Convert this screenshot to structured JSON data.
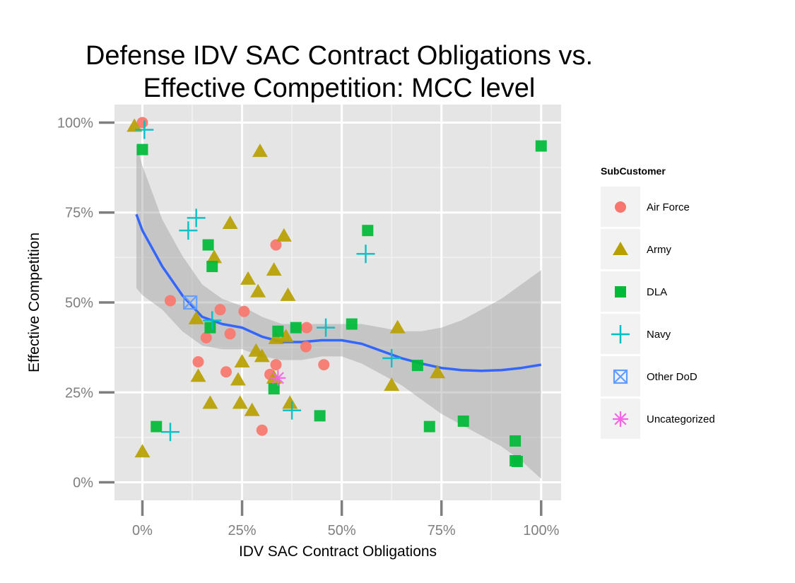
{
  "chart_data": {
    "type": "scatter",
    "title": [
      "Defense IDV SAC Contract Obligations vs.",
      "Effective Competition: MCC level"
    ],
    "xlabel": "IDV SAC Contract Obligations",
    "ylabel": "Effective Competition",
    "xlim": [
      -0.07,
      1.05
    ],
    "ylim": [
      -0.05,
      1.05
    ],
    "x_ticks": [
      0,
      0.25,
      0.5,
      0.75,
      1.0
    ],
    "x_tick_labels": [
      "0%",
      "25%",
      "50%",
      "75%",
      "100%"
    ],
    "y_ticks": [
      0,
      0.25,
      0.5,
      0.75,
      1.0
    ],
    "y_tick_labels": [
      "0%",
      "25%",
      "50%",
      "75%",
      "100%"
    ],
    "grid": true,
    "legend_position": "right",
    "legend": {
      "title": "SubCustomer",
      "entries": [
        {
          "name": "Air Force",
          "shape": "circle",
          "color": "#F8766D"
        },
        {
          "name": "Army",
          "shape": "triangle",
          "color": "#B79F00"
        },
        {
          "name": "DLA",
          "shape": "square",
          "color": "#00BA38"
        },
        {
          "name": "Navy",
          "shape": "plus",
          "color": "#00BFC4"
        },
        {
          "name": "Other DoD",
          "shape": "boxx",
          "color": "#619CFF"
        },
        {
          "name": "Uncategorized",
          "shape": "asterisk",
          "color": "#F564E3"
        }
      ]
    },
    "series": [
      {
        "name": "Air Force",
        "points": [
          [
            0.0,
            1.0
          ],
          [
            0.07,
            0.505
          ],
          [
            0.14,
            0.335
          ],
          [
            0.16,
            0.402
          ],
          [
            0.195,
            0.48
          ],
          [
            0.21,
            0.307
          ],
          [
            0.22,
            0.413
          ],
          [
            0.255,
            0.475
          ],
          [
            0.3,
            0.145
          ],
          [
            0.32,
            0.3
          ],
          [
            0.335,
            0.327
          ],
          [
            0.335,
            0.66
          ],
          [
            0.41,
            0.377
          ],
          [
            0.412,
            0.43
          ],
          [
            0.455,
            0.327
          ]
        ]
      },
      {
        "name": "Army",
        "points": [
          [
            -0.02,
            0.99
          ],
          [
            0.0,
            0.085
          ],
          [
            0.135,
            0.455
          ],
          [
            0.14,
            0.295
          ],
          [
            0.17,
            0.22
          ],
          [
            0.18,
            0.625
          ],
          [
            0.22,
            0.72
          ],
          [
            0.24,
            0.285
          ],
          [
            0.245,
            0.22
          ],
          [
            0.25,
            0.335
          ],
          [
            0.265,
            0.565
          ],
          [
            0.275,
            0.2
          ],
          [
            0.285,
            0.365
          ],
          [
            0.29,
            0.53
          ],
          [
            0.295,
            0.92
          ],
          [
            0.3,
            0.35
          ],
          [
            0.33,
            0.29
          ],
          [
            0.33,
            0.59
          ],
          [
            0.335,
            0.4
          ],
          [
            0.355,
            0.685
          ],
          [
            0.36,
            0.405
          ],
          [
            0.365,
            0.52
          ],
          [
            0.37,
            0.22
          ],
          [
            0.625,
            0.27
          ],
          [
            0.64,
            0.43
          ],
          [
            0.74,
            0.305
          ]
        ]
      },
      {
        "name": "DLA",
        "points": [
          [
            0.0,
            0.925
          ],
          [
            0.035,
            0.155
          ],
          [
            0.165,
            0.66
          ],
          [
            0.17,
            0.43
          ],
          [
            0.175,
            0.6
          ],
          [
            0.33,
            0.26
          ],
          [
            0.34,
            0.42
          ],
          [
            0.385,
            0.43
          ],
          [
            0.445,
            0.185
          ],
          [
            0.525,
            0.44
          ],
          [
            0.565,
            0.7
          ],
          [
            0.69,
            0.325
          ],
          [
            0.72,
            0.155
          ],
          [
            0.805,
            0.17
          ],
          [
            0.935,
            0.115
          ],
          [
            0.935,
            0.06
          ],
          [
            0.94,
            0.058
          ],
          [
            1.0,
            0.935
          ]
        ]
      },
      {
        "name": "Navy",
        "points": [
          [
            0.005,
            0.98
          ],
          [
            0.07,
            0.14
          ],
          [
            0.115,
            0.7
          ],
          [
            0.135,
            0.735
          ],
          [
            0.175,
            0.45
          ],
          [
            0.375,
            0.2
          ],
          [
            0.46,
            0.43
          ],
          [
            0.56,
            0.635
          ],
          [
            0.625,
            0.345
          ]
        ]
      },
      {
        "name": "Other DoD",
        "points": [
          [
            0.12,
            0.5
          ]
        ]
      },
      {
        "name": "Uncategorized",
        "points": [
          [
            0.34,
            0.29
          ]
        ]
      }
    ],
    "smooth": {
      "x": [
        -0.015,
        0.0,
        0.05,
        0.1,
        0.15,
        0.2,
        0.25,
        0.3,
        0.35,
        0.4,
        0.45,
        0.5,
        0.55,
        0.6,
        0.65,
        0.7,
        0.75,
        0.8,
        0.85,
        0.9,
        0.95,
        1.0
      ],
      "y": [
        0.745,
        0.7,
        0.6,
        0.52,
        0.46,
        0.44,
        0.43,
        0.405,
        0.39,
        0.39,
        0.395,
        0.395,
        0.385,
        0.365,
        0.345,
        0.33,
        0.318,
        0.312,
        0.31,
        0.312,
        0.318,
        0.327
      ],
      "lower": [
        0.54,
        0.52,
        0.48,
        0.42,
        0.38,
        0.37,
        0.37,
        0.35,
        0.34,
        0.34,
        0.35,
        0.35,
        0.33,
        0.3,
        0.27,
        0.23,
        0.19,
        0.16,
        0.13,
        0.1,
        0.06,
        0.01
      ],
      "upper": [
        0.94,
        0.88,
        0.73,
        0.63,
        0.55,
        0.51,
        0.49,
        0.46,
        0.44,
        0.44,
        0.44,
        0.44,
        0.44,
        0.43,
        0.42,
        0.42,
        0.43,
        0.45,
        0.48,
        0.51,
        0.55,
        0.59
      ]
    }
  }
}
